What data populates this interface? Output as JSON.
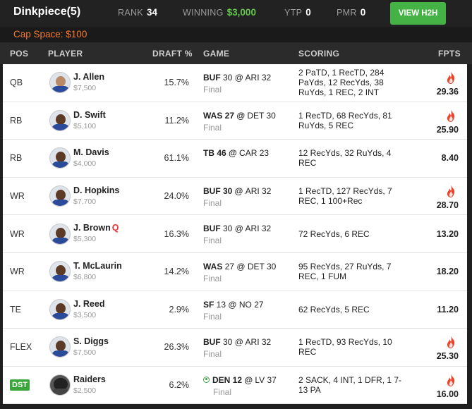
{
  "header": {
    "team_name": "Dinkpiece",
    "team_count": "(5)",
    "rank_label": "RANK",
    "rank_value": "34",
    "winning_label": "WINNING",
    "winning_value": "$3,000",
    "ytp_label": "YTP",
    "ytp_value": "0",
    "pmr_label": "PMR",
    "pmr_value": "0",
    "view_h2h_label": "VIEW H2H",
    "cap_space": "Cap Space: $100"
  },
  "columns": {
    "pos": "POS",
    "player": "PLAYER",
    "draft": "DRAFT %",
    "game": "GAME",
    "scoring": "SCORING",
    "fpts": "FPTS"
  },
  "colors": {
    "accent_green": "#44b244",
    "cap_orange": "#f47a2e",
    "flame": "#e8452c"
  },
  "rows": [
    {
      "pos": "QB",
      "name": "J. Allen",
      "salary": "$7,500",
      "draft": "15.7%",
      "game_pre": "BUF",
      "game_mid": " 30 @ ARI 32",
      "status": "Final",
      "scoring": "2 PaTD, 1 RecTD, 284 PaYds, 12 RecYds, 38 RuYds, 1 REC, 2 INT",
      "fpts": "29.36",
      "hot": true,
      "avatar": "player-avatar"
    },
    {
      "pos": "RB",
      "name": "D. Swift",
      "salary": "$5,100",
      "draft": "11.2%",
      "game_pre": "WAS 27 @ ",
      "game_mid": "DET 30",
      "status": "Final",
      "scoring": "1 RecTD, 68 RecYds, 81 RuYds, 5 REC",
      "fpts": "25.90",
      "hot": true,
      "avatar": "player-avatar"
    },
    {
      "pos": "RB",
      "name": "M. Davis",
      "salary": "$4,000",
      "draft": "61.1%",
      "game_pre": "TB 46 @ ",
      "game_mid": "CAR 23",
      "status": "",
      "scoring": "12 RecYds, 32 RuYds, 4 REC",
      "fpts": "8.40",
      "hot": false,
      "avatar": "player-avatar"
    },
    {
      "pos": "WR",
      "name": "D. Hopkins",
      "salary": "$7,700",
      "draft": "24.0%",
      "game_pre": "BUF 30 @ ",
      "game_mid": "ARI 32",
      "status": "Final",
      "scoring": "1 RecTD, 127 RecYds, 7 REC, 1 100+Rec",
      "fpts": "28.70",
      "hot": true,
      "avatar": "player-avatar"
    },
    {
      "pos": "WR",
      "name": "J. Brown",
      "salary": "$5,300",
      "draft": "16.3%",
      "game_pre": "BUF",
      "game_mid": " 30 @ ARI 32",
      "status": "Final",
      "scoring": "72 RecYds, 6 REC",
      "fpts": "13.20",
      "hot": false,
      "avatar": "player-avatar",
      "tag": "Q"
    },
    {
      "pos": "WR",
      "name": "T. McLaurin",
      "salary": "$6,800",
      "draft": "14.2%",
      "game_pre": "WAS",
      "game_mid": " 27 @ DET 30",
      "status": "Final",
      "scoring": "95 RecYds, 27 RuYds, 7 REC, 1 FUM",
      "fpts": "18.20",
      "hot": false,
      "avatar": "player-avatar"
    },
    {
      "pos": "TE",
      "name": "J. Reed",
      "salary": "$3,500",
      "draft": "2.9%",
      "game_pre": "SF",
      "game_mid": " 13 @ NO 27",
      "status": "Final",
      "scoring": "62 RecYds, 5 REC",
      "fpts": "11.20",
      "hot": false,
      "avatar": "player-avatar"
    },
    {
      "pos": "FLEX",
      "name": "S. Diggs",
      "salary": "$7,500",
      "draft": "26.3%",
      "game_pre": "BUF",
      "game_mid": " 30 @ ARI 32",
      "status": "Final",
      "scoring": "1 RecTD, 93 RecYds, 10 REC",
      "fpts": "25.30",
      "hot": true,
      "avatar": "player-avatar"
    },
    {
      "pos": "DST",
      "name": "Raiders",
      "salary": "$2,500",
      "draft": "6.2%",
      "game_pre": "DEN 12 @ ",
      "game_mid": "LV 37",
      "status": "Final",
      "scoring": "2 SACK, 4 INT, 1 DFR, 1 7-13 PA",
      "fpts": "16.00",
      "hot": true,
      "avatar": "team-helmet",
      "live": true
    }
  ]
}
